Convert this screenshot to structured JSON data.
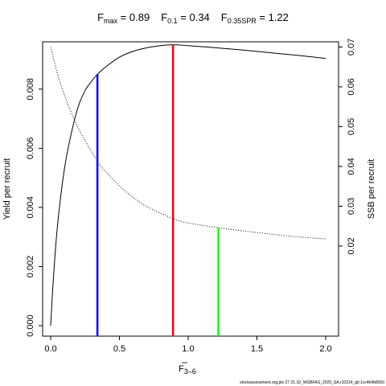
{
  "title": {
    "fmax": {
      "sym": "F",
      "sub": "max",
      "rest": " = 0.89"
    },
    "f01": {
      "sym": "F",
      "sub": "0.1",
      "rest": " = 0.34"
    },
    "fspr": {
      "sym": "F",
      "sub": "0.35SPR",
      "rest": " = 1.22"
    }
  },
  "footer": "stockassessment.org,ple.27.21.32_WGBFAS_2025_SA,r10314_git:1cc464b8060",
  "chart_data": {
    "type": "line",
    "xlabel": {
      "main": "F",
      "sub": "3–6"
    },
    "ylabel_left": "Yield per recruit",
    "ylabel_right": "SSB per recruit",
    "xlim": [
      0,
      2.0
    ],
    "ylim_left": [
      0,
      0.0096
    ],
    "ylim_right": [
      0,
      0.0713
    ],
    "x_ticks": [
      "0.0",
      "0.5",
      "1.0",
      "1.5",
      "2.0"
    ],
    "y_left_ticks": [
      "0.000",
      "0.002",
      "0.004",
      "0.006",
      "0.008"
    ],
    "y_right_ticks": [
      "0.02",
      "0.03",
      "0.04",
      "0.05",
      "0.06",
      "0.07"
    ],
    "grid": false,
    "series": [
      {
        "axis": "left",
        "style": "solid",
        "color": "#000000",
        "x": [
          0.0,
          0.02,
          0.05,
          0.1,
          0.15,
          0.2,
          0.25,
          0.3,
          0.34,
          0.4,
          0.5,
          0.6,
          0.7,
          0.8,
          0.89,
          1.0,
          1.2,
          1.4,
          1.6,
          1.8,
          2.0
        ],
        "y": [
          0.0,
          0.0016,
          0.0034,
          0.0053,
          0.0065,
          0.0074,
          0.00795,
          0.00828,
          0.0085,
          0.00875,
          0.00908,
          0.00928,
          0.0094,
          0.00947,
          0.0095,
          0.00947,
          0.0094,
          0.00932,
          0.00923,
          0.00914,
          0.00904
        ]
      },
      {
        "axis": "right",
        "style": "dotted",
        "color": "#000000",
        "x": [
          0.0,
          0.05,
          0.1,
          0.15,
          0.2,
          0.25,
          0.34,
          0.4,
          0.5,
          0.6,
          0.7,
          0.89,
          1.0,
          1.22,
          1.4,
          1.6,
          1.8,
          2.0
        ],
        "y": [
          0.0701,
          0.0632,
          0.0579,
          0.0535,
          0.0497,
          0.0465,
          0.0413,
          0.0387,
          0.0351,
          0.0322,
          0.0299,
          0.0269,
          0.0258,
          0.0246,
          0.0238,
          0.023,
          0.0223,
          0.0218
        ]
      }
    ],
    "ref_lines": [
      {
        "name": "F0.1",
        "x": 0.34,
        "color": "#0000ff",
        "axis": "left",
        "top": 0.0085
      },
      {
        "name": "Fmax",
        "x": 0.89,
        "color": "#ff0000",
        "axis": "left",
        "top": 0.0095
      },
      {
        "name": "F0.35SPR",
        "x": 1.22,
        "color": "#00ff00",
        "axis": "right",
        "top": 0.0246
      }
    ]
  }
}
